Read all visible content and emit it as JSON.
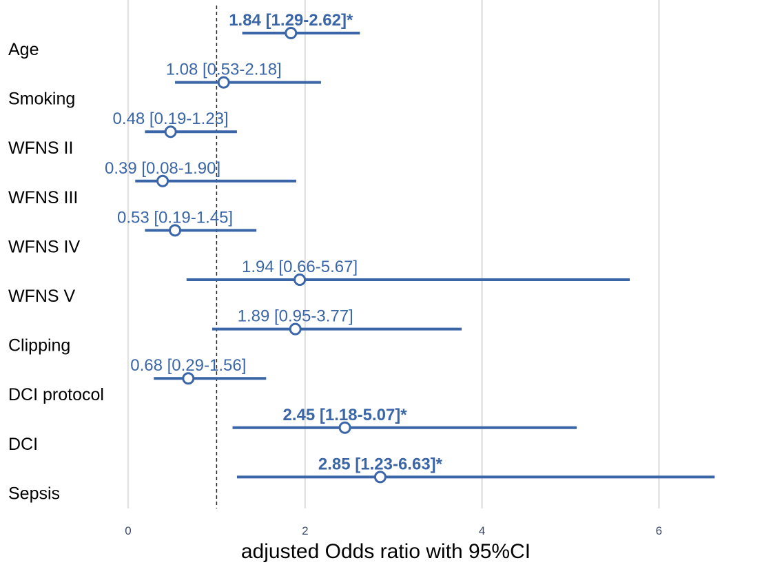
{
  "chart_data": {
    "type": "forest",
    "xlabel": "adjusted Odds ratio with 95%CI",
    "xlim": [
      0,
      7.2
    ],
    "x_ticks": [
      0,
      2,
      4,
      6
    ],
    "reference_line": 1,
    "grid": true,
    "colors": {
      "series": "#3a66a8",
      "grid": "#e2e2e2",
      "reference": "#222222"
    },
    "rows": [
      {
        "name": "Age",
        "or": 1.84,
        "lo": 1.29,
        "hi": 2.62,
        "label": "1.84 [1.29-2.62]*",
        "significant": true
      },
      {
        "name": "Smoking",
        "or": 1.08,
        "lo": 0.53,
        "hi": 2.18,
        "label": "1.08 [0.53-2.18]",
        "significant": false
      },
      {
        "name": "WFNS II",
        "or": 0.48,
        "lo": 0.19,
        "hi": 1.23,
        "label": "0.48 [0.19-1.23]",
        "significant": false
      },
      {
        "name": "WFNS III",
        "or": 0.39,
        "lo": 0.08,
        "hi": 1.9,
        "label": "0.39 [0.08-1.90]",
        "significant": false
      },
      {
        "name": "WFNS IV",
        "or": 0.53,
        "lo": 0.19,
        "hi": 1.45,
        "label": "0.53 [0.19-1.45]",
        "significant": false
      },
      {
        "name": "WFNS V",
        "or": 1.94,
        "lo": 0.66,
        "hi": 5.67,
        "label": "1.94 [0.66-5.67]",
        "significant": false
      },
      {
        "name": "Clipping",
        "or": 1.89,
        "lo": 0.95,
        "hi": 3.77,
        "label": "1.89 [0.95-3.77]",
        "significant": false
      },
      {
        "name": "DCI protocol",
        "or": 0.68,
        "lo": 0.29,
        "hi": 1.56,
        "label": "0.68 [0.29-1.56]",
        "significant": false
      },
      {
        "name": "DCI",
        "or": 2.45,
        "lo": 1.18,
        "hi": 5.07,
        "label": "2.45 [1.18-5.07]*",
        "significant": true
      },
      {
        "name": "Sepsis",
        "or": 2.85,
        "lo": 1.23,
        "hi": 6.63,
        "label": "2.85 [1.23-6.63]*",
        "significant": true
      }
    ]
  }
}
